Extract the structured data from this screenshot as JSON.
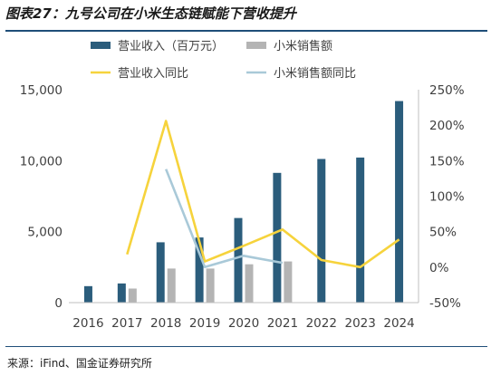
{
  "figure": {
    "title": "图表27：九号公司在小米生态链赋能下营收提升",
    "source": "来源：iFind、国金证券研究所"
  },
  "chart_data": {
    "type": "bar",
    "categories": [
      "2016",
      "2017",
      "2018",
      "2019",
      "2020",
      "2021",
      "2022",
      "2023",
      "2024"
    ],
    "series": [
      {
        "name": "营业收入（百万元）",
        "type": "bar",
        "axis": "left",
        "color": "#2b5d7c",
        "values": [
          1160,
          1350,
          4250,
          4590,
          5960,
          9140,
          10120,
          10220,
          14200
        ]
      },
      {
        "name": "小米销售额",
        "type": "bar",
        "axis": "left",
        "color": "#b4b4b4",
        "values": [
          null,
          990,
          2400,
          2400,
          2700,
          2900,
          null,
          null,
          null
        ]
      },
      {
        "name": "营业收入同比",
        "type": "line",
        "axis": "right",
        "color": "#f6d33c",
        "values": [
          null,
          18,
          206,
          8,
          30,
          53,
          10,
          0,
          39
        ]
      },
      {
        "name": "小米销售额同比",
        "type": "line",
        "axis": "right",
        "color": "#a9c9d8",
        "values": [
          null,
          null,
          138,
          0,
          16,
          6,
          null,
          null,
          null
        ]
      }
    ],
    "left_axis": {
      "ylim": [
        0,
        15000
      ],
      "ticks": [
        "0",
        "5,000",
        "10,000",
        "15,000"
      ]
    },
    "right_axis": {
      "ylim": [
        -50,
        250
      ],
      "ticks": [
        "-50%",
        "0%",
        "50%",
        "100%",
        "150%",
        "200%",
        "250%"
      ]
    },
    "legend_position": "top",
    "grid": false
  }
}
